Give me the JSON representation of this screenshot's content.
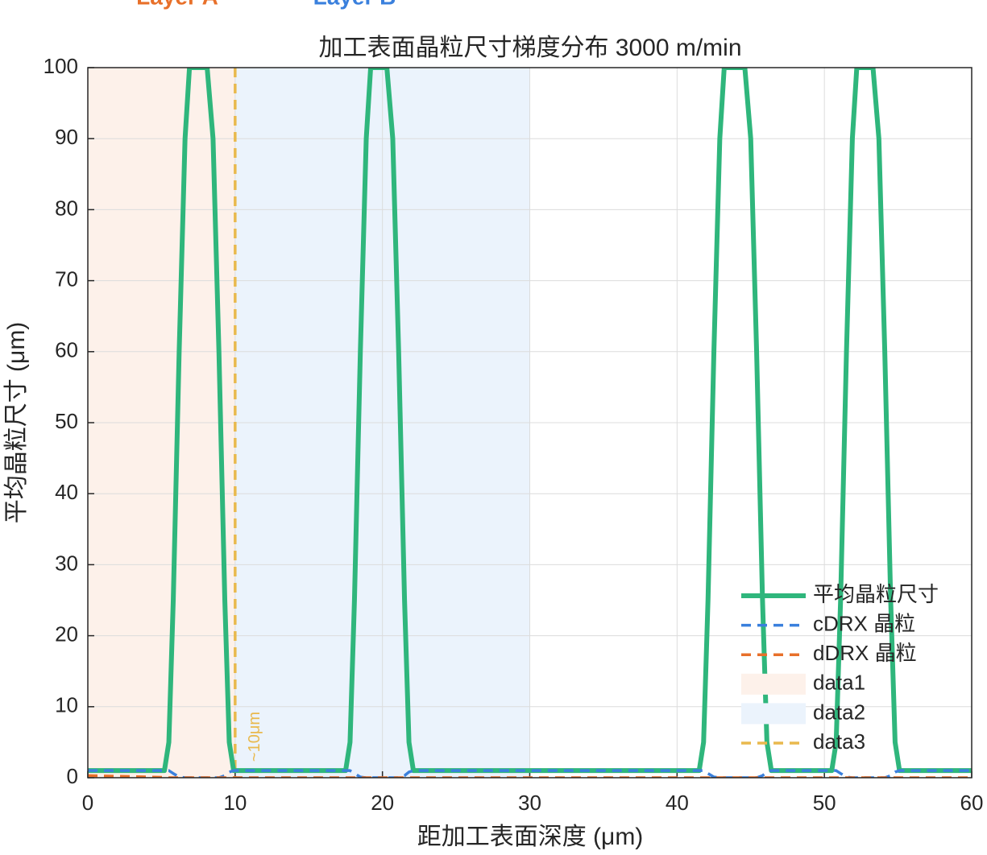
{
  "chart_data": {
    "type": "line",
    "title": "加工表面晶粒尺寸梯度分布   3000 m/min",
    "xlabel": "距加工表面深度 (μm)",
    "ylabel": "平均晶粒尺寸 (μm)",
    "x": [
      0,
      5.2,
      5.5,
      5.8,
      6.2,
      6.6,
      6.9,
      8.1,
      8.5,
      8.9,
      9.3,
      9.6,
      9.9,
      17.5,
      17.8,
      18.1,
      18.5,
      18.9,
      19.2,
      20.3,
      20.7,
      21.1,
      21.5,
      21.8,
      22.1,
      41.5,
      41.8,
      42.1,
      42.5,
      42.9,
      43.2,
      44.6,
      45.0,
      45.4,
      45.8,
      46.1,
      46.4,
      50.5,
      50.8,
      51.1,
      51.5,
      51.9,
      52.2,
      53.3,
      53.7,
      54.1,
      54.5,
      54.8,
      55.1,
      60
    ],
    "series": [
      {
        "name": "平均晶粒尺寸",
        "color": "#2fb67c",
        "style": "solid",
        "values": [
          1,
          1,
          5,
          25,
          60,
          90,
          100,
          100,
          90,
          60,
          25,
          5,
          1,
          1,
          5,
          25,
          60,
          90,
          100,
          100,
          90,
          60,
          25,
          5,
          1,
          1,
          5,
          25,
          60,
          90,
          100,
          100,
          90,
          60,
          25,
          5,
          1,
          1,
          5,
          25,
          60,
          90,
          100,
          100,
          90,
          60,
          25,
          5,
          1,
          1
        ]
      },
      {
        "name": "cDRX 晶粒",
        "color": "#3a80dd",
        "style": "dashed",
        "values": [
          1,
          1,
          1,
          0.6,
          0.1,
          0,
          0,
          0,
          0,
          0,
          0.3,
          0.8,
          1,
          1,
          1,
          0.6,
          0.1,
          0,
          0,
          0,
          0,
          0,
          0.3,
          0.8,
          1,
          1,
          1,
          0.6,
          0.1,
          0,
          0,
          0,
          0,
          0,
          0.3,
          0.8,
          1,
          1,
          1,
          0.6,
          0.1,
          0,
          0,
          0,
          0,
          0,
          0.3,
          0.8,
          1,
          1
        ]
      },
      {
        "name": "dDRX 晶粒",
        "color": "#e8702a",
        "style": "dashed",
        "values": [
          0.3,
          0.05,
          0,
          0,
          0,
          0,
          0,
          0,
          0,
          0,
          0,
          0,
          0,
          0,
          0,
          0,
          0,
          0,
          0,
          0,
          0,
          0,
          0,
          0,
          0,
          0,
          0,
          0,
          0,
          0,
          0,
          0,
          0,
          0,
          0,
          0,
          0,
          0,
          0,
          0,
          0,
          0,
          0,
          0,
          0,
          0,
          0,
          0,
          0,
          0
        ]
      }
    ],
    "regions": [
      {
        "name": "data1",
        "color": "#fdf1ea",
        "x": [
          0,
          10
        ]
      },
      {
        "name": "data2",
        "color": "#ebf3fc",
        "x": [
          10,
          30
        ]
      }
    ],
    "vlines": [
      {
        "name": "data3",
        "color": "#e9b94d",
        "x": 10
      }
    ],
    "annotation": "~10μm",
    "top_labels": [
      {
        "text": "Layer A",
        "color": "#e8702a"
      },
      {
        "text": "Layer B",
        "color": "#3a80dd"
      }
    ],
    "xlim": [
      0,
      60
    ],
    "xticks": [
      0,
      10,
      20,
      30,
      40,
      50,
      60
    ],
    "ylim": [
      0,
      100
    ],
    "yticks": [
      0,
      10,
      20,
      30,
      40,
      50,
      60,
      70,
      80,
      90,
      100
    ],
    "grid": true,
    "legend": "lower right"
  }
}
